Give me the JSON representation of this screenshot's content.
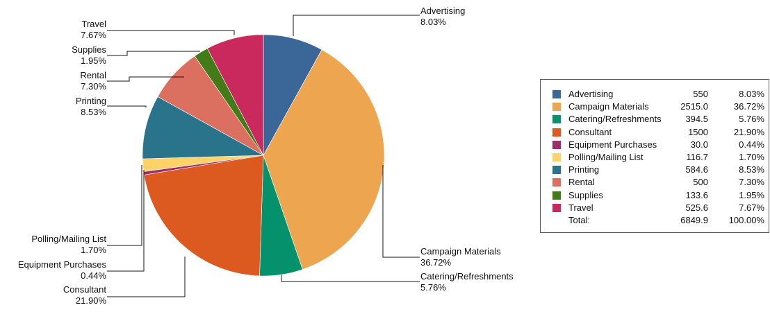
{
  "chart_data": {
    "type": "pie",
    "title": "",
    "legend_position": "right",
    "categories": [
      "Advertising",
      "Campaign Materials",
      "Catering/Refreshments",
      "Consultant",
      "Equipment Purchases",
      "Polling/Mailing List",
      "Printing",
      "Rental",
      "Supplies",
      "Travel"
    ],
    "values": [
      550,
      2515.0,
      394.5,
      1500,
      30.0,
      116.7,
      584.6,
      500,
      133.6,
      525.6
    ],
    "percentages": [
      "8.03%",
      "36.72%",
      "5.76%",
      "21.90%",
      "0.44%",
      "1.70%",
      "8.53%",
      "7.30%",
      "1.95%",
      "7.67%"
    ],
    "value_labels": [
      "550",
      "2515.0",
      "394.5",
      "1500",
      "30.0",
      "116.7",
      "584.6",
      "500",
      "133.6",
      "525.6"
    ],
    "colors": [
      "#3a6698",
      "#eea550",
      "#04916b",
      "#dc5a20",
      "#a02c6b",
      "#fdd268",
      "#2a748b",
      "#dc7060",
      "#427b18",
      "#c9295c"
    ],
    "total_label": "Total:",
    "total_value": "6849.9",
    "total_pct": "100.00%"
  }
}
